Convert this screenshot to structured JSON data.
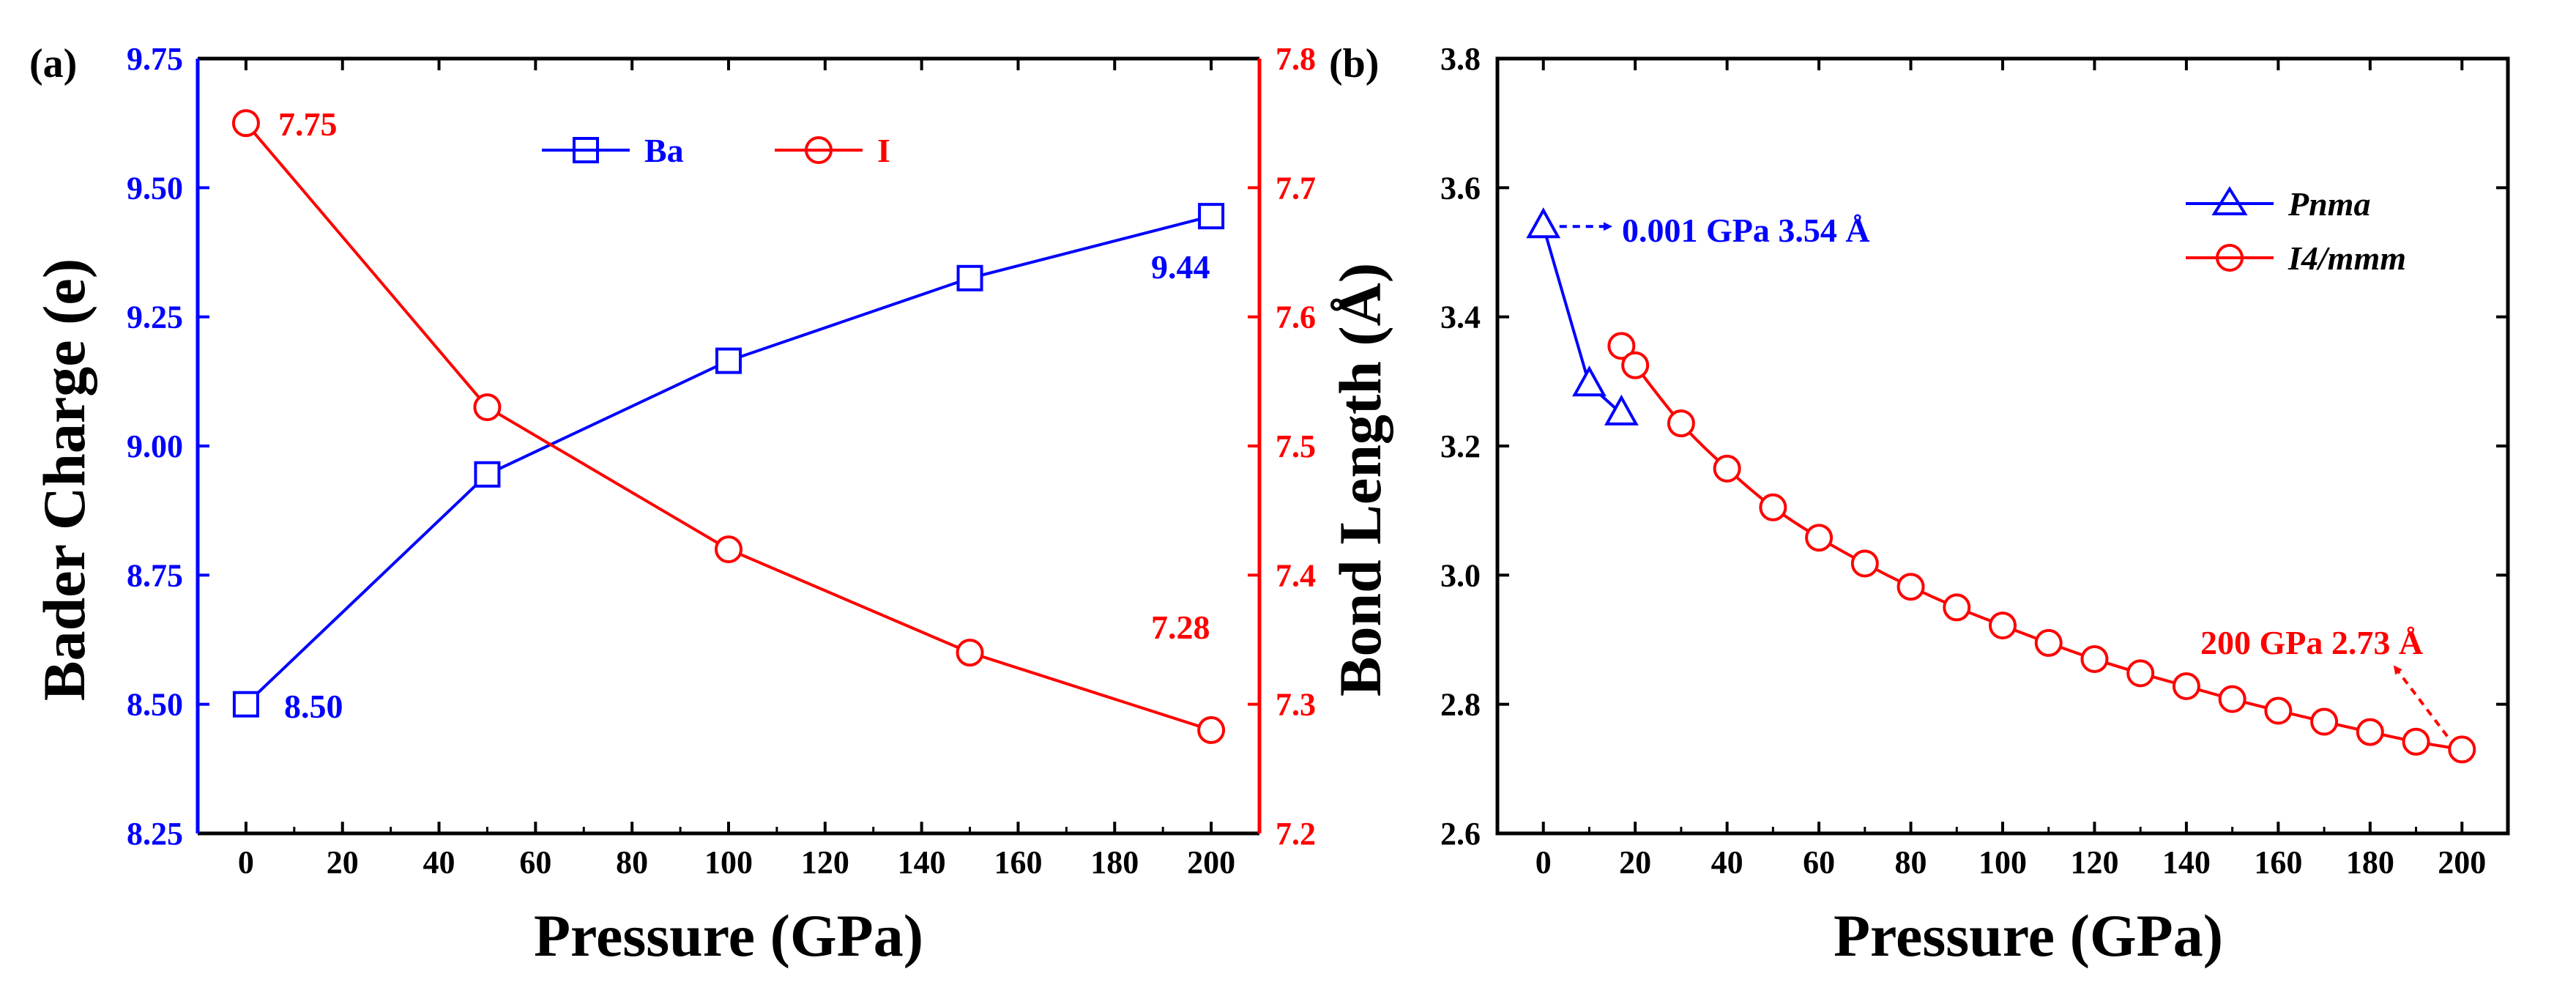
{
  "chart_data": [
    {
      "type": "line",
      "panel_label": "(a)",
      "xlabel": "Pressure (GPa)",
      "ylabel": "Bader Charge (e)",
      "x_ticks": [
        0,
        20,
        40,
        60,
        80,
        100,
        120,
        140,
        160,
        180,
        200
      ],
      "xlim": [
        -10,
        210
      ],
      "y_left": {
        "lim": [
          8.25,
          9.75
        ],
        "ticks": [
          "8.25",
          "8.50",
          "8.75",
          "9.00",
          "9.25",
          "9.50",
          "9.75"
        ],
        "color": "#0000ff"
      },
      "y_right": {
        "lim": [
          7.2,
          7.8
        ],
        "ticks": [
          "7.2",
          "7.3",
          "7.4",
          "7.5",
          "7.6",
          "7.7",
          "7.8"
        ],
        "color": "#ff0000"
      },
      "series": [
        {
          "name": "Ba",
          "axis": "left",
          "marker": "square",
          "color": "#0000ff",
          "x": [
            0,
            50,
            100,
            150,
            200
          ],
          "y": [
            8.5,
            8.945,
            9.165,
            9.325,
            9.445
          ]
        },
        {
          "name": "I",
          "axis": "right",
          "marker": "circle",
          "color": "#ff0000",
          "x": [
            0,
            50,
            100,
            150,
            200
          ],
          "y": [
            7.75,
            7.53,
            7.42,
            7.34,
            7.28
          ]
        }
      ],
      "annotations": [
        {
          "text": "7.75",
          "series": "I",
          "x": 0,
          "y": 7.75
        },
        {
          "text": "8.50",
          "series": "Ba",
          "x": 0,
          "y": 8.5
        },
        {
          "text": "9.44",
          "series": "Ba",
          "x": 200,
          "y": 9.44
        },
        {
          "text": "7.28",
          "series": "I",
          "x": 200,
          "y": 7.28
        }
      ],
      "legend": {
        "placement": "top-center",
        "entries": [
          "Ba",
          "I"
        ]
      }
    },
    {
      "type": "line",
      "panel_label": "(b)",
      "xlabel": "Pressure (GPa)",
      "ylabel": "Bond Length (Å)",
      "x_ticks": [
        0,
        20,
        40,
        60,
        80,
        100,
        120,
        140,
        160,
        180,
        200
      ],
      "xlim": [
        -10,
        210
      ],
      "ylim": [
        2.6,
        3.8
      ],
      "y_ticks": [
        "2.6",
        "2.8",
        "3.0",
        "3.2",
        "3.4",
        "3.6",
        "3.8"
      ],
      "series": [
        {
          "name": "Pnma",
          "marker": "triangle",
          "color": "#0000ff",
          "x": [
            0.001,
            10,
            17
          ],
          "y": [
            3.54,
            3.295,
            3.25
          ]
        },
        {
          "name": "I4/mmm",
          "marker": "circle",
          "color": "#ff0000",
          "x": [
            17,
            20,
            30,
            40,
            50,
            60,
            70,
            80,
            90,
            100,
            110,
            120,
            130,
            140,
            150,
            160,
            170,
            180,
            190,
            200
          ],
          "y": [
            3.355,
            3.325,
            3.235,
            3.165,
            3.105,
            3.058,
            3.018,
            2.982,
            2.95,
            2.922,
            2.895,
            2.87,
            2.848,
            2.828,
            2.808,
            2.79,
            2.773,
            2.757,
            2.742,
            2.73
          ]
        }
      ],
      "annotations": [
        {
          "text": "0.001 GPa 3.54 Å",
          "color": "#0000ff",
          "points_to": [
            0.001,
            3.54
          ]
        },
        {
          "text": "200 GPa 2.73 Å",
          "color": "#ff0000",
          "points_to": [
            200,
            2.73
          ]
        }
      ],
      "legend": {
        "placement": "top-right",
        "entries": [
          "Pnma",
          "I4/mmm"
        ]
      }
    }
  ]
}
